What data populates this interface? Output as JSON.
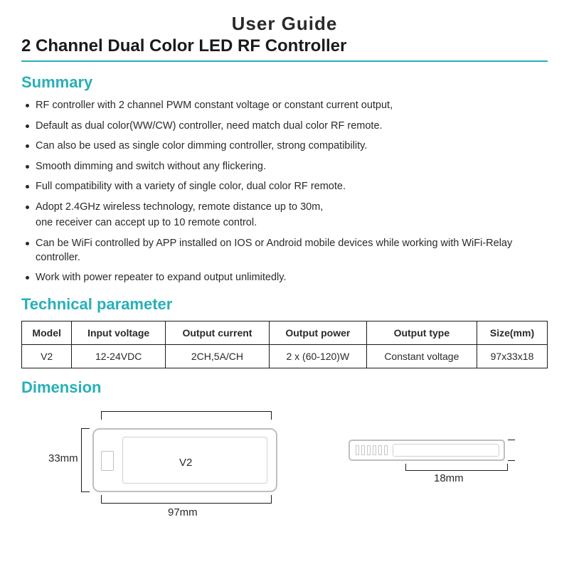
{
  "header": {
    "title": "User Guide",
    "subtitle": "2 Channel Dual Color LED RF Controller"
  },
  "colors": {
    "accent": "#28b0b8",
    "text": "#2a2a2a",
    "border_light": "#bfbfbf"
  },
  "summary": {
    "heading": "Summary",
    "items": [
      "RF controller with 2 channel PWM constant voltage or constant current output,",
      "Default as dual color(WW/CW) controller, need match dual color RF remote.",
      "Can also be used as single color dimming controller, strong compatibility.",
      "Smooth dimming and switch without any flickering.",
      "Full compatibility with a variety of single color, dual color RF remote.",
      "Adopt 2.4GHz wireless technology, remote distance up to 30m,\none receiver can accept up to 10 remote control.",
      "Can be WiFi controlled by APP installed on IOS or Android mobile devices while working with WiFi-Relay controller.",
      "Work with power repeater to expand output unlimitedly."
    ]
  },
  "tech": {
    "heading": "Technical parameter",
    "columns": [
      "Model",
      "Input voltage",
      "Output current",
      "Output power",
      "Output type",
      "Size(mm)"
    ],
    "rows": [
      [
        "V2",
        "12-24VDC",
        "2CH,5A/CH",
        "2 x (60-120)W",
        "Constant voltage",
        "97x33x18"
      ]
    ]
  },
  "dimension": {
    "heading": "Dimension",
    "device_label": "V2",
    "height_label": "33mm",
    "width_label": "97mm",
    "depth_label": "18mm",
    "height_mm": 33,
    "width_mm": 97,
    "depth_mm": 18
  }
}
